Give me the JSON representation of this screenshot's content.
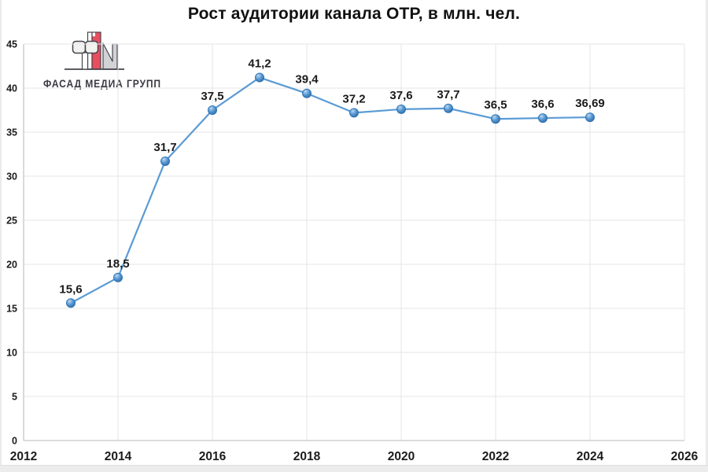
{
  "logo": {
    "text": "ФАСАД МЕДИА ГРУПП",
    "red": "#e94e5f",
    "outline": "#45454d",
    "gray_fill": "#d2d3d7",
    "light_fill": "#f2f2f0"
  },
  "chart_data": {
    "type": "line",
    "title": "Рост аудитории канала ОТР, в млн. чел.",
    "x": [
      2013,
      2014,
      2015,
      2016,
      2017,
      2018,
      2019,
      2020,
      2021,
      2022,
      2023,
      2024
    ],
    "values": [
      15.6,
      18.5,
      31.7,
      37.5,
      41.2,
      39.4,
      37.2,
      37.6,
      37.7,
      36.5,
      36.6,
      36.69
    ],
    "point_labels": [
      "15,6",
      "18,5",
      "31,7",
      "37,5",
      "41,2",
      "39,4",
      "37,2",
      "37,6",
      "37,7",
      "36,5",
      "36,6",
      "36,69"
    ],
    "xlabel": "",
    "ylabel": "",
    "xlim": [
      2012,
      2026
    ],
    "ylim": [
      0,
      45
    ],
    "x_ticks": [
      2012,
      2014,
      2016,
      2018,
      2020,
      2022,
      2024,
      2026
    ],
    "y_ticks": [
      0,
      5,
      10,
      15,
      20,
      25,
      30,
      35,
      40,
      45
    ],
    "grid": true,
    "legend": "none",
    "line_color": "#5B9BD5",
    "marker_stroke": "#2E75B6",
    "grid_color": "#e5e5e5",
    "axis_color": "#c6c6c6",
    "label_color": "#1b1b1b"
  }
}
